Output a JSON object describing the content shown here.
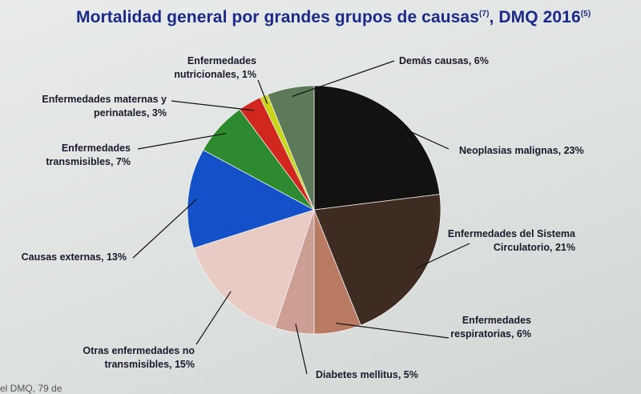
{
  "chart_data": {
    "type": "pie",
    "title": "Mortalidad general por grandes grupos de causas",
    "title_ref1": "(7)",
    "title_suffix": ", DMQ 2016",
    "title_ref2": "(5)",
    "slices": [
      {
        "label": [
          "Neoplasias malignas, 23%"
        ],
        "value": 23,
        "color": "#141210"
      },
      {
        "label": [
          "Enfermedades del Sistema",
          "Circulatorio, 21%"
        ],
        "value": 21,
        "color": "#3e2c22"
      },
      {
        "label": [
          "Enfermedades",
          "respiratorias, 6%"
        ],
        "value": 6,
        "color": "#b97a63"
      },
      {
        "label": [
          "Diabetes mellitus, 5%"
        ],
        "value": 5,
        "color": "#cc9e94"
      },
      {
        "label": [
          "Otras enfermedades no",
          "transmisibles, 15%"
        ],
        "value": 15,
        "color": "#e8cbc4"
      },
      {
        "label": [
          "Causas externas, 13%"
        ],
        "value": 13,
        "color": "#1450c8"
      },
      {
        "label": [
          "Enfermedades",
          "transmisibles, 7%"
        ],
        "value": 7,
        "color": "#2e8a2e"
      },
      {
        "label": [
          "Enfermedades maternas y",
          "perinatales, 3%"
        ],
        "value": 3,
        "color": "#d0281e"
      },
      {
        "label": [
          "Enfermedades",
          "nutricionales, 1%"
        ],
        "value": 1,
        "color": "#c8d418"
      },
      {
        "label": [
          "Demás causas, 6%"
        ],
        "value": 6,
        "color": "#5c7a58"
      }
    ]
  },
  "footer_text": "el DMQ, 79 de"
}
